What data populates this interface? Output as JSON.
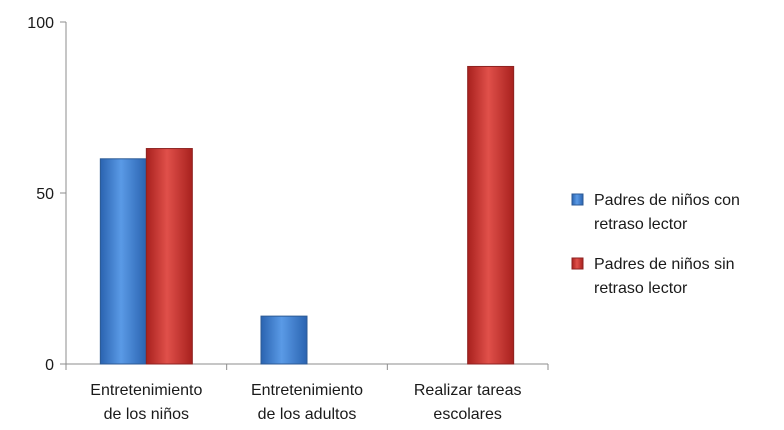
{
  "chart_data": {
    "type": "bar",
    "categories": [
      [
        "Entretenimiento",
        "de los niños"
      ],
      [
        "Entretenimiento",
        "de los adultos"
      ],
      [
        "Realizar tareas",
        "escolares"
      ]
    ],
    "series": [
      {
        "name": [
          "Padres de niños con",
          "retraso lector"
        ],
        "values": [
          60,
          14,
          0
        ],
        "color": "#3f7fd0"
      },
      {
        "name": [
          "Padres de niños sin",
          "retraso lector"
        ],
        "values": [
          63,
          0,
          87
        ],
        "color": "#c8322e"
      }
    ],
    "y_ticks": [
      "0",
      "50",
      "100"
    ],
    "ylim": [
      0,
      100
    ],
    "legend_position": "right",
    "grid": false
  }
}
